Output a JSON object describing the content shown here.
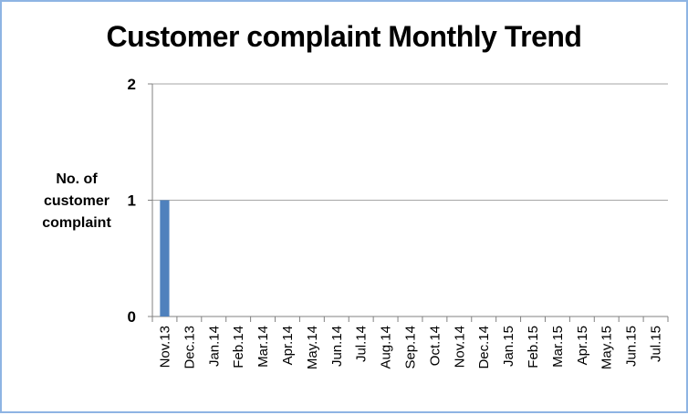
{
  "chart_data": {
    "type": "bar",
    "title": "Customer complaint Monthly Trend",
    "ylabel": "No. of customer complaint",
    "xlabel": "",
    "categories": [
      "Nov.13",
      "Dec.13",
      "Jan.14",
      "Feb.14",
      "Mar.14",
      "Apr.14",
      "May.14",
      "Jun.14",
      "Jul.14",
      "Aug.14",
      "Sep.14",
      "Oct.14",
      "Nov.14",
      "Dec.14",
      "Jan.15",
      "Feb.15",
      "Mar.15",
      "Apr.15",
      "May.15",
      "Jun.15",
      "Jul.15"
    ],
    "values": [
      1,
      0,
      0,
      0,
      0,
      0,
      0,
      0,
      0,
      0,
      0,
      0,
      0,
      0,
      0,
      0,
      0,
      0,
      0,
      0,
      0
    ],
    "ylim": [
      0,
      2
    ],
    "yticks": [
      "0",
      "1",
      "2"
    ],
    "grid": true,
    "colors": {
      "bar": "#4f81bd",
      "grid": "#a6a6a6",
      "axis": "#808080",
      "border": "#8eb4e3"
    }
  }
}
